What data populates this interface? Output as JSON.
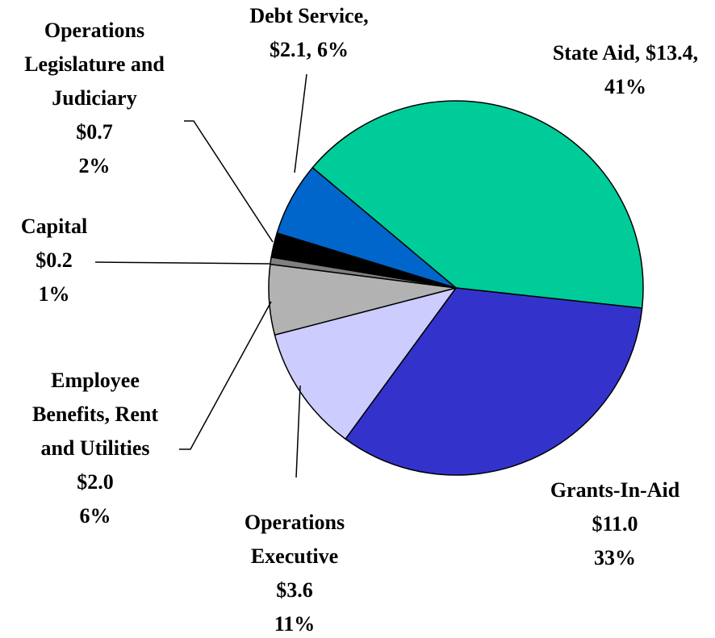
{
  "chart_data": {
    "type": "pie",
    "categories": [
      [
        "State Aid,"
      ],
      [
        "Grants-In-Aid"
      ],
      [
        "Operations",
        "Executive"
      ],
      [
        "Employee",
        "Benefits, Rent",
        "and Utilities"
      ],
      [
        "Capital"
      ],
      [
        "Operations",
        "Legislature and",
        "Judiciary"
      ],
      [
        "Debt Service,"
      ]
    ],
    "values": [
      13.4,
      11.0,
      3.6,
      2.0,
      0.2,
      0.7,
      2.1
    ],
    "value_labels": [
      "$13.4,",
      "$11.0",
      "$3.6",
      "$2.0",
      "$0.2",
      "$0.7",
      "$2.1,"
    ],
    "percent_labels": [
      "41%",
      "33%",
      "11%",
      "6%",
      "1%",
      "2%",
      "6%"
    ],
    "colors": [
      "#00cc99",
      "#3333cc",
      "#ccccff",
      "#b2b2b2",
      "#808080",
      "#000000",
      "#0066cc"
    ]
  }
}
